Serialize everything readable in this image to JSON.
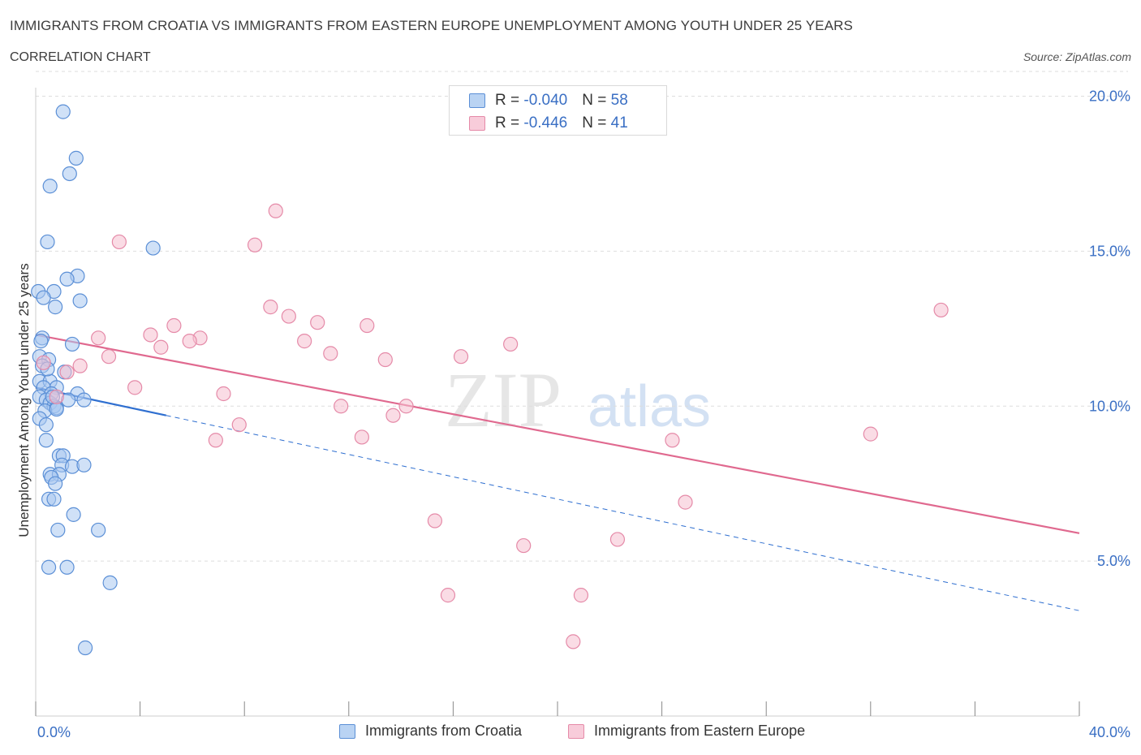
{
  "title": "IMMIGRANTS FROM CROATIA VS IMMIGRANTS FROM EASTERN EUROPE UNEMPLOYMENT AMONG YOUTH UNDER 25 YEARS",
  "subtitle": "CORRELATION CHART",
  "source": "Source: ZipAtlas.com",
  "watermark": {
    "zip": "ZIP",
    "atlas": "atlas"
  },
  "legend_box": {
    "series1": {
      "r_label": "R = ",
      "r_value": "-0.040",
      "n_label": "N = ",
      "n_value": "58"
    },
    "series2": {
      "r_label": "R = ",
      "r_value": "-0.446",
      "n_label": "N = ",
      "n_value": "41"
    }
  },
  "colors": {
    "blue_fill": "#a9c8f0",
    "blue_stroke": "#5b8fd6",
    "blue_line": "#2f6fd0",
    "pink_fill": "#f5bfd0",
    "pink_stroke": "#e58aa8",
    "pink_line": "#e0698f",
    "axis_label": "#3a6fc4",
    "grid": "#dddddd"
  },
  "chart_data": {
    "type": "scatter",
    "title": "IMMIGRANTS FROM CROATIA VS IMMIGRANTS FROM EASTERN EUROPE UNEMPLOYMENT AMONG YOUTH UNDER 25 YEARS",
    "xlabel": "",
    "ylabel": "Unemployment Among Youth under 25 years",
    "xlim": [
      0,
      40
    ],
    "ylim": [
      0,
      20.8
    ],
    "x_tick_labels": [
      "0.0%",
      "40.0%"
    ],
    "y_ticks": [
      5,
      10,
      15,
      20
    ],
    "y_tick_labels": [
      "5.0%",
      "10.0%",
      "15.0%",
      "20.0%"
    ],
    "series": [
      {
        "name": "Immigrants from Croatia",
        "color": "blue",
        "points": [
          [
            1.05,
            19.5
          ],
          [
            1.55,
            18.0
          ],
          [
            1.3,
            17.5
          ],
          [
            0.55,
            17.1
          ],
          [
            0.45,
            15.3
          ],
          [
            4.5,
            15.1
          ],
          [
            1.6,
            14.2
          ],
          [
            1.2,
            14.1
          ],
          [
            0.1,
            13.7
          ],
          [
            0.7,
            13.7
          ],
          [
            0.3,
            13.5
          ],
          [
            1.7,
            13.4
          ],
          [
            0.75,
            13.2
          ],
          [
            0.25,
            12.2
          ],
          [
            1.4,
            12.0
          ],
          [
            0.15,
            11.6
          ],
          [
            0.5,
            11.5
          ],
          [
            0.25,
            11.3
          ],
          [
            1.1,
            11.1
          ],
          [
            0.15,
            10.8
          ],
          [
            0.55,
            10.8
          ],
          [
            0.8,
            10.6
          ],
          [
            0.3,
            10.6
          ],
          [
            0.6,
            10.4
          ],
          [
            1.6,
            10.4
          ],
          [
            0.15,
            10.3
          ],
          [
            0.4,
            10.2
          ],
          [
            1.25,
            10.2
          ],
          [
            1.85,
            10.2
          ],
          [
            0.55,
            10.1
          ],
          [
            0.7,
            10.0
          ],
          [
            0.8,
            9.95
          ],
          [
            0.35,
            9.85
          ],
          [
            0.8,
            9.9
          ],
          [
            0.15,
            9.6
          ],
          [
            0.4,
            9.4
          ],
          [
            0.4,
            8.9
          ],
          [
            0.9,
            8.4
          ],
          [
            1.05,
            8.4
          ],
          [
            1.0,
            8.1
          ],
          [
            1.4,
            8.05
          ],
          [
            1.85,
            8.1
          ],
          [
            0.55,
            7.8
          ],
          [
            0.9,
            7.8
          ],
          [
            0.6,
            7.7
          ],
          [
            0.75,
            7.5
          ],
          [
            0.5,
            7.0
          ],
          [
            0.7,
            7.0
          ],
          [
            1.45,
            6.5
          ],
          [
            0.85,
            6.0
          ],
          [
            2.4,
            6.0
          ],
          [
            0.5,
            4.8
          ],
          [
            1.2,
            4.8
          ],
          [
            2.85,
            4.3
          ],
          [
            1.9,
            2.2
          ],
          [
            0.45,
            11.2
          ],
          [
            0.2,
            12.1
          ],
          [
            0.65,
            10.3
          ]
        ]
      },
      {
        "name": "Immigrants from Eastern Europe",
        "color": "pink",
        "points": [
          [
            9.2,
            16.3
          ],
          [
            3.2,
            15.3
          ],
          [
            8.4,
            15.2
          ],
          [
            9.0,
            13.2
          ],
          [
            9.7,
            12.9
          ],
          [
            10.8,
            12.7
          ],
          [
            12.7,
            12.6
          ],
          [
            5.3,
            12.6
          ],
          [
            4.4,
            12.3
          ],
          [
            2.4,
            12.2
          ],
          [
            6.3,
            12.2
          ],
          [
            5.9,
            12.1
          ],
          [
            10.3,
            12.1
          ],
          [
            4.8,
            11.9
          ],
          [
            18.2,
            12.0
          ],
          [
            2.8,
            11.6
          ],
          [
            11.3,
            11.7
          ],
          [
            16.3,
            11.6
          ],
          [
            13.4,
            11.5
          ],
          [
            0.3,
            11.4
          ],
          [
            1.7,
            11.3
          ],
          [
            1.2,
            11.1
          ],
          [
            3.8,
            10.6
          ],
          [
            7.2,
            10.4
          ],
          [
            0.8,
            10.3
          ],
          [
            11.7,
            10.0
          ],
          [
            14.2,
            10.0
          ],
          [
            13.7,
            9.7
          ],
          [
            7.8,
            9.4
          ],
          [
            6.9,
            8.9
          ],
          [
            12.5,
            9.0
          ],
          [
            24.4,
            8.9
          ],
          [
            32.0,
            9.1
          ],
          [
            34.7,
            13.1
          ],
          [
            24.9,
            6.9
          ],
          [
            15.3,
            6.3
          ],
          [
            18.7,
            5.5
          ],
          [
            22.3,
            5.7
          ],
          [
            15.8,
            3.9
          ],
          [
            20.9,
            3.9
          ],
          [
            20.6,
            2.4
          ]
        ]
      }
    ],
    "trendlines": [
      {
        "series": "Immigrants from Croatia",
        "solid": [
          [
            0,
            10.6
          ],
          [
            5.0,
            9.7
          ]
        ],
        "dashed": [
          [
            5.0,
            9.7
          ],
          [
            40,
            3.4
          ]
        ]
      },
      {
        "series": "Immigrants from Eastern Europe",
        "solid": [
          [
            0,
            12.3
          ],
          [
            40,
            5.9
          ]
        ]
      }
    ],
    "legend": [
      "Immigrants from Croatia",
      "Immigrants from Eastern Europe"
    ],
    "legend_position": "bottom-center"
  }
}
